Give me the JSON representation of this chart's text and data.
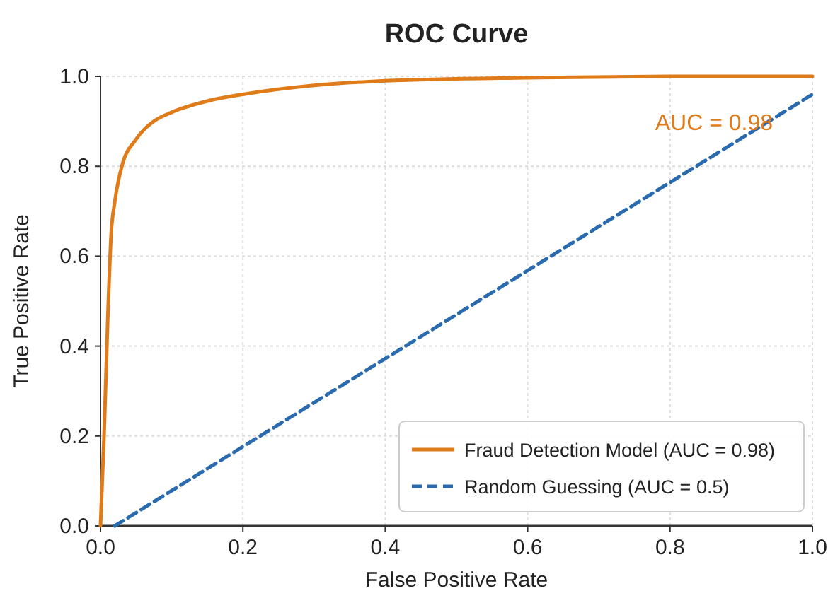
{
  "chart_data": {
    "type": "line",
    "title": "ROC Curve",
    "xlabel": "False Positive Rate",
    "ylabel": "True Positive Rate",
    "xlim": [
      0,
      1
    ],
    "ylim": [
      0,
      1
    ],
    "xticks": [
      {
        "value": 0,
        "label": "0.0"
      },
      0.2,
      0.4,
      0.6,
      0.8,
      {
        "value": 1,
        "label": "1.0"
      }
    ],
    "yticks": [
      {
        "value": 0,
        "label": "0.0"
      },
      0.2,
      0.4,
      0.6,
      0.8,
      {
        "value": 1,
        "label": "1.0"
      }
    ],
    "grid": true,
    "legend": "bottom right",
    "annotations": [
      "AUC = 0.98"
    ],
    "series": [
      {
        "name": "Fraud Detection Model (AUC = 0.98)",
        "color": "#e07b1a",
        "line_style": "solid",
        "x": [
          0,
          0.005,
          0.01,
          0.015,
          0.02,
          0.03,
          0.05,
          0.075,
          0.1,
          0.15,
          0.2,
          0.3,
          0.4,
          0.6,
          0.8,
          1
        ],
        "values": [
          0,
          0.2,
          0.45,
          0.65,
          0.72,
          0.8,
          0.86,
          0.9,
          0.92,
          0.945,
          0.96,
          0.98,
          0.99,
          0.997,
          1,
          1
        ]
      },
      {
        "name": "Random Guessing (AUC = 0.5)",
        "color": "#2a6bb0",
        "line_style": "dashed",
        "x": [
          0.02,
          1
        ],
        "values": [
          0,
          0.96
        ]
      }
    ]
  }
}
